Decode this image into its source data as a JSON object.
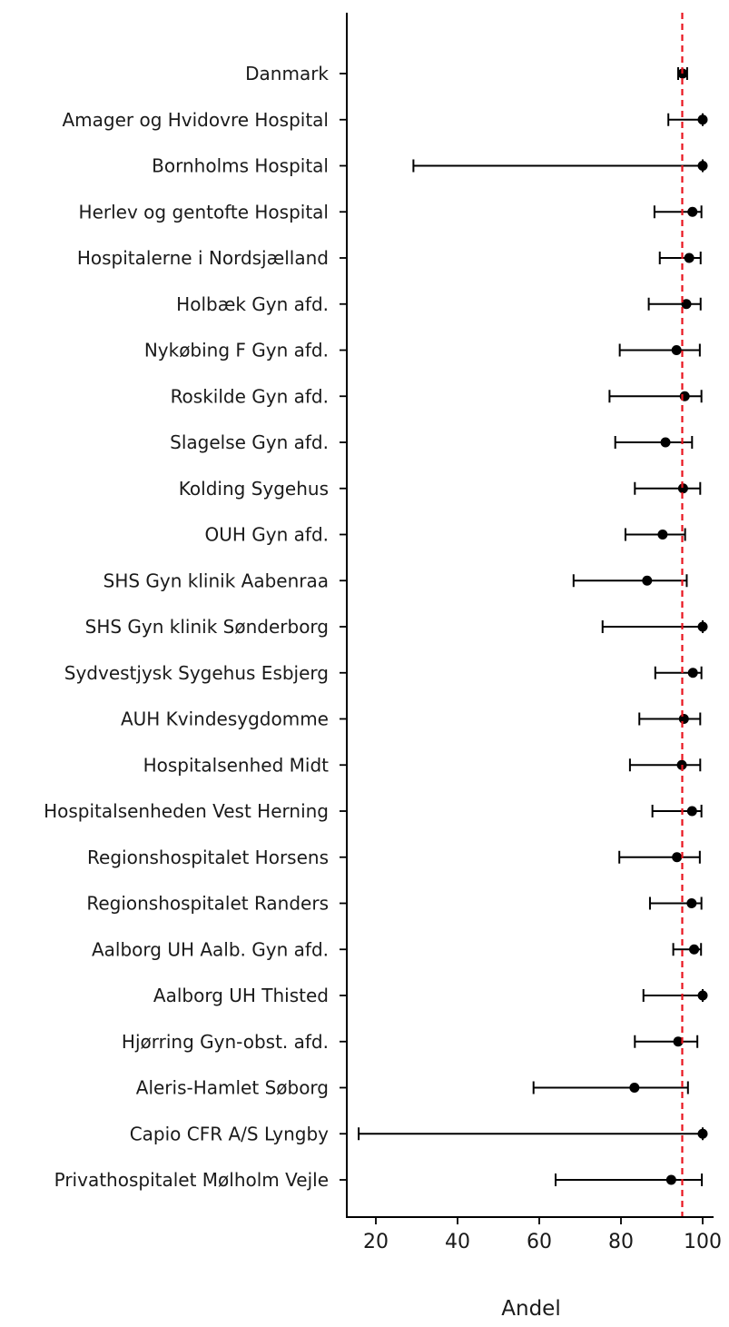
{
  "chart_data": {
    "type": "scatter",
    "orientation": "horizontal",
    "error_bars": true,
    "title": "",
    "xlabel": "Andel",
    "ylabel": "",
    "xlim": [
      12.5,
      103
    ],
    "xticks": [
      20,
      40,
      60,
      80,
      100
    ],
    "xtick_labels": [
      "20",
      "40",
      "60",
      "80",
      "100"
    ],
    "reference_line": {
      "x": 95,
      "style": "dashed",
      "color": "#e8141e"
    },
    "grid": false,
    "categories": [
      "Danmark",
      "Amager og Hvidovre Hospital",
      "Bornholms Hospital",
      "Herlev og gentofte Hospital",
      "Hospitalerne i Nordsjælland",
      "Holbæk Gyn afd.",
      "Nykøbing F Gyn afd.",
      "Roskilde Gyn afd.",
      "Slagelse Gyn afd.",
      "Kolding Sygehus",
      "OUH Gyn afd.",
      "SHS Gyn klinik Aabenraa",
      "SHS Gyn klinik Sønderborg",
      "Sydvestjysk Sygehus Esbjerg",
      "AUH Kvindesygdomme",
      "Hospitalsenhed Midt",
      "Hospitalsenheden Vest Herning",
      "Regionshospitalet Horsens",
      "Regionshospitalet Randers",
      "Aalborg UH Aalb. Gyn afd.",
      "Aalborg UH Thisted",
      "Hjørring Gyn-obst. afd.",
      "Aleris-Hamlet Søborg",
      "Capio CFR A/S Lyngby",
      "Privathospitalet Mølholm Vejle"
    ],
    "values": [
      95.1,
      100,
      100,
      97.5,
      96.7,
      96,
      93.6,
      95.6,
      90.9,
      95.2,
      90.2,
      86.4,
      100,
      97.6,
      95.4,
      94.9,
      97.4,
      93.7,
      97.3,
      97.9,
      100,
      94,
      83.3,
      100,
      92.3
    ],
    "lower": [
      94,
      91.6,
      29.2,
      88.2,
      89.5,
      86.8,
      79.7,
      77.2,
      78.6,
      83.4,
      81.1,
      68.4,
      75.5,
      88.4,
      84.5,
      82.2,
      87.7,
      79.6,
      87.1,
      92.8,
      85.5,
      83.4,
      58.6,
      15.8,
      64
    ],
    "upper": [
      96.2,
      100,
      100,
      99.7,
      99.5,
      99.5,
      99.3,
      99.7,
      97.4,
      99.4,
      95.7,
      96.1,
      100,
      99.7,
      99.4,
      99.4,
      99.7,
      99.3,
      99.7,
      99.6,
      100,
      98.7,
      96.4,
      100,
      99.8
    ]
  }
}
